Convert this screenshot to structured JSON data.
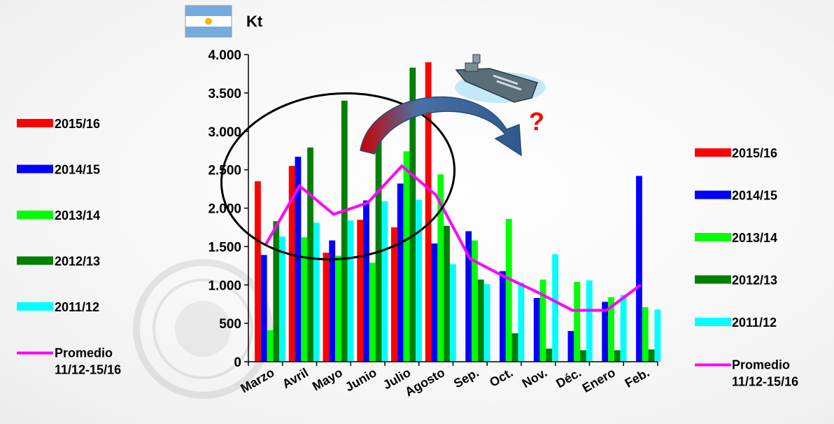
{
  "chart_data": {
    "type": "bar",
    "unit_label": "Kt",
    "categories": [
      "Marzo",
      "Avril",
      "Mayo",
      "Junio",
      "Julio",
      "Agosto",
      "Sep.",
      "Oct.",
      "Nov.",
      "Déc.",
      "Enero",
      "Feb."
    ],
    "ylim": [
      0,
      4000
    ],
    "yticks": [
      {
        "value": 0,
        "label": "0"
      },
      {
        "value": 500,
        "label": "500"
      },
      {
        "value": 1000,
        "label": "1.000"
      },
      {
        "value": 1500,
        "label": "1.500"
      },
      {
        "value": 2000,
        "label": "2.000"
      },
      {
        "value": 2500,
        "label": "2.500"
      },
      {
        "value": 3000,
        "label": "3.000"
      },
      {
        "value": 3500,
        "label": "3.500"
      },
      {
        "value": 4000,
        "label": "4.000"
      }
    ],
    "grid": false,
    "series": [
      {
        "name": "2015/16",
        "color": "#ff0000",
        "values": [
          2350,
          2550,
          1420,
          1850,
          1750,
          3900,
          null,
          null,
          null,
          null,
          null,
          null
        ]
      },
      {
        "name": "2014/15",
        "color": "#0000ff",
        "values": [
          1390,
          2670,
          1580,
          2100,
          2320,
          1540,
          1700,
          1180,
          830,
          400,
          780,
          2420
        ]
      },
      {
        "name": "2013/14",
        "color": "#00ff00",
        "values": [
          410,
          1620,
          1380,
          1290,
          2740,
          2440,
          1580,
          1860,
          1070,
          1040,
          840,
          710
        ]
      },
      {
        "name": "2012/13",
        "color": "#008000",
        "values": [
          1830,
          2790,
          3400,
          3040,
          3830,
          1770,
          1070,
          370,
          170,
          150,
          150,
          160
        ]
      },
      {
        "name": "2011/12",
        "color": "#00ffff",
        "values": [
          1630,
          1810,
          1840,
          2090,
          2110,
          1270,
          1010,
          1030,
          1400,
          1060,
          870,
          680
        ]
      }
    ],
    "line_series": {
      "name": "Promedio 11/12-15/16",
      "name_lines": [
        "Promedio",
        "11/12-15/16"
      ],
      "color": "#ff00ff",
      "values": [
        1520,
        2290,
        1920,
        2070,
        2550,
        2170,
        1340,
        1110,
        900,
        670,
        670,
        1000
      ]
    },
    "legend_placement": "left and right",
    "annotation": "?"
  }
}
